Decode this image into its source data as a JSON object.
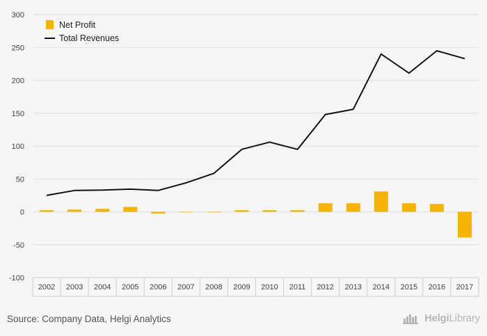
{
  "chart_data": {
    "type": "bar+line",
    "categories": [
      "2002",
      "2003",
      "2004",
      "2005",
      "2006",
      "2007",
      "2008",
      "2009",
      "2010",
      "2011",
      "2012",
      "2013",
      "2014",
      "2015",
      "2016",
      "2017"
    ],
    "series": [
      {
        "name": "Net Profit",
        "type": "bar",
        "color": "#f5b400",
        "values": [
          2.5,
          3.5,
          4.5,
          7.5,
          -2.5,
          -0.5,
          -0.5,
          2.5,
          2.5,
          2.5,
          13,
          13,
          31,
          13,
          12,
          -39
        ]
      },
      {
        "name": "Total Revenues",
        "type": "line",
        "color": "#111111",
        "values": [
          25,
          32.5,
          33,
          34.5,
          32.5,
          44,
          58.5,
          95,
          106,
          95,
          148,
          156,
          240,
          211,
          245,
          233
        ]
      }
    ],
    "y_ticks": [
      "300",
      "250",
      "200",
      "150",
      "100",
      "50",
      "0",
      "-50",
      "-100"
    ],
    "ylim": [
      -100,
      300
    ],
    "grid": true,
    "legend": "top-left"
  },
  "footer": {
    "source": "Source: Company Data, Helgi Analytics",
    "brand_prefix": "Helgi",
    "brand_suffix": "Library",
    "brand_icon": "helgi-library-logo-icon"
  }
}
